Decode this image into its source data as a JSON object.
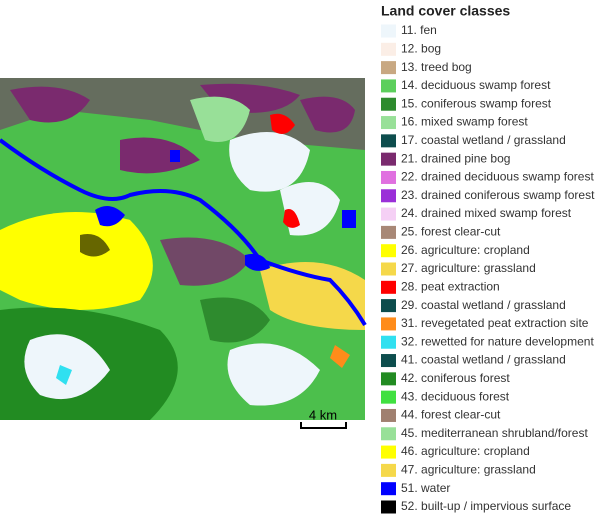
{
  "legend": {
    "title": "Land cover classes",
    "items": [
      {
        "label": "11. fen",
        "color": "#eef6fb"
      },
      {
        "label": "12. bog",
        "color": "#fbeee6"
      },
      {
        "label": "13. treed bog",
        "color": "#c8a882"
      },
      {
        "label": "14. deciduous swamp forest",
        "color": "#5ccf5c"
      },
      {
        "label": "15. coniferous swamp forest",
        "color": "#2e8b2e"
      },
      {
        "label": "16. mixed swamp forest",
        "color": "#98e098"
      },
      {
        "label": "17. coastal wetland / grassland",
        "color": "#0d4d4d"
      },
      {
        "label": "21. drained pine bog",
        "color": "#7a2a6e"
      },
      {
        "label": "22. drained deciduous swamp forest",
        "color": "#e070e0"
      },
      {
        "label": "23. drained coniferous swamp forest",
        "color": "#9a2fd8"
      },
      {
        "label": "24. drained mixed swamp forest",
        "color": "#f5d0f5"
      },
      {
        "label": "25. forest clear-cut",
        "color": "#a88876"
      },
      {
        "label": "26. agriculture: cropland",
        "color": "#ffff00"
      },
      {
        "label": "27. agriculture: grassland",
        "color": "#f5d84a"
      },
      {
        "label": "28. peat extraction",
        "color": "#ff0000"
      },
      {
        "label": "29. coastal wetland / grassland",
        "color": "#0d4d4d"
      },
      {
        "label": "31. revegetated peat extraction site",
        "color": "#ff8c1a"
      },
      {
        "label": "32. rewetted for nature development",
        "color": "#30e0f0"
      },
      {
        "label": "41. coastal wetland / grassland",
        "color": "#0d4d4d"
      },
      {
        "label": "42. coniferous forest",
        "color": "#228b22"
      },
      {
        "label": "43. deciduous forest",
        "color": "#40e040"
      },
      {
        "label": "44. forest clear-cut",
        "color": "#a08070"
      },
      {
        "label": "45. mediterranean shrubland/forest",
        "color": "#98e098"
      },
      {
        "label": "46. agriculture: cropland",
        "color": "#ffff00"
      },
      {
        "label": "47. agriculture: grassland",
        "color": "#f5d84a"
      },
      {
        "label": "51. water",
        "color": "#0000ff"
      },
      {
        "label": "52. built-up / impervious surface",
        "color": "#000000"
      }
    ]
  },
  "scale_bar": {
    "label": "4 km"
  }
}
